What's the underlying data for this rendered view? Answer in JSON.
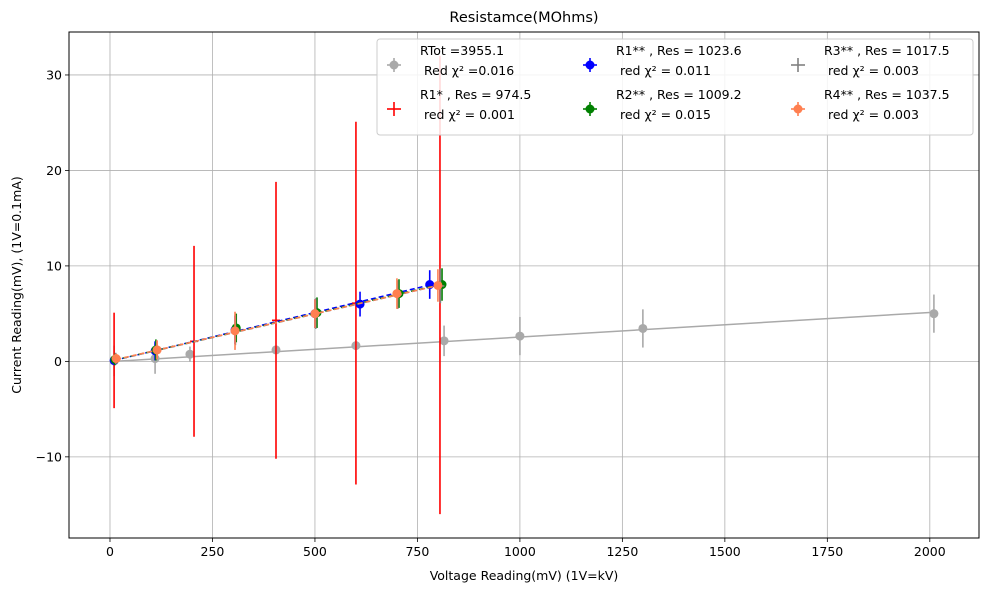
{
  "chart_data": {
    "type": "scatter",
    "title": "Resistamce(MOhms)",
    "xlabel": "Voltage Reading(mV) (1V=kV)",
    "ylabel": "Current Reading(mV), (1V=0.1mA)",
    "xlim": [
      -100,
      2120
    ],
    "ylim": [
      -18.5,
      34.5
    ],
    "xticks": [
      0,
      250,
      500,
      750,
      1000,
      1250,
      1500,
      1750,
      2000
    ],
    "yticks": [
      -10,
      0,
      10,
      20,
      30
    ],
    "xtick_labels": [
      "0",
      "250",
      "500",
      "750",
      "1000",
      "1250",
      "1500",
      "1750",
      "2000"
    ],
    "ytick_labels": [
      "−10",
      "0",
      "10",
      "20",
      "30"
    ],
    "grid": true,
    "legend_position": "top-right",
    "series": [
      {
        "name": "RTot =3955.1",
        "stat": "Red χ² =0.016",
        "color": "#a9a9a9",
        "marker": "circle",
        "x": [
          10,
          110,
          195,
          405,
          600,
          815,
          1000,
          1300,
          2010
        ],
        "y": [
          0.05,
          0.3,
          0.75,
          1.2,
          1.65,
          2.15,
          2.65,
          3.45,
          5.0
        ],
        "yerr": [
          1.6,
          1.6,
          0.8,
          0.4,
          0.3,
          1.6,
          2.0,
          2.0,
          2.0
        ],
        "fit": {
          "x": [
            10,
            2010
          ],
          "y": [
            0.0,
            5.15
          ],
          "style": "solid"
        }
      },
      {
        "name": "R1* , Res = 974.5",
        "stat": "red χ² = 0.001",
        "color": "#ff0000",
        "marker": "none",
        "x": [
          10,
          205,
          405,
          600,
          805
        ],
        "y": [
          0.1,
          2.1,
          4.3,
          6.1,
          8.0
        ],
        "yerr": [
          5.0,
          10.0,
          14.5,
          19.0,
          24.0
        ],
        "fit": null
      },
      {
        "name": "R1** , Res = 1023.6",
        "stat": "red χ² = 0.011",
        "color": "#0000ff",
        "marker": "circle",
        "x": [
          10,
          110,
          305,
          500,
          610,
          780
        ],
        "y": [
          0.1,
          1.1,
          3.3,
          5.0,
          6.0,
          8.05
        ],
        "yerr": [
          0.5,
          1.0,
          1.5,
          1.5,
          1.3,
          1.5
        ],
        "fit": {
          "x": [
            10,
            790
          ],
          "y": [
            0.1,
            8.1
          ],
          "style": "dashed"
        }
      },
      {
        "name": "R2** , Res = 1009.2",
        "stat": "red χ² = 0.015",
        "color": "#008000",
        "marker": "circle",
        "x": [
          12,
          112,
          308,
          505,
          705,
          810
        ],
        "y": [
          0.2,
          1.2,
          3.5,
          5.1,
          7.1,
          8.05
        ],
        "yerr": [
          0.6,
          1.1,
          1.5,
          1.6,
          1.5,
          1.7
        ],
        "fit": {
          "x": [
            12,
            810
          ],
          "y": [
            0.15,
            8.1
          ],
          "style": "dashed"
        }
      },
      {
        "name": "R3** , Res = 1017.5",
        "stat": "red χ² = 0.003",
        "color": "#808080",
        "marker": "none",
        "x": [
          14,
          114,
          306,
          502,
          702,
          806
        ],
        "y": [
          0.3,
          1.2,
          3.3,
          5.0,
          7.0,
          7.9
        ],
        "yerr": [
          0.6,
          1.0,
          1.6,
          1.6,
          1.5,
          1.8
        ],
        "fit": {
          "x": [
            14,
            806
          ],
          "y": [
            0.15,
            8.0
          ],
          "style": "dashed"
        }
      },
      {
        "name": "R4** , Res = 1037.5",
        "stat": "red χ² = 0.003",
        "color": "#ff7f50",
        "marker": "circle",
        "x": [
          15,
          115,
          305,
          500,
          700,
          800
        ],
        "y": [
          0.3,
          1.2,
          3.2,
          5.0,
          7.1,
          7.95
        ],
        "yerr": [
          0.5,
          1.0,
          2.0,
          1.5,
          1.6,
          1.7
        ],
        "fit": {
          "x": [
            15,
            800
          ],
          "y": [
            0.2,
            7.95
          ],
          "style": "dashed"
        }
      }
    ]
  }
}
